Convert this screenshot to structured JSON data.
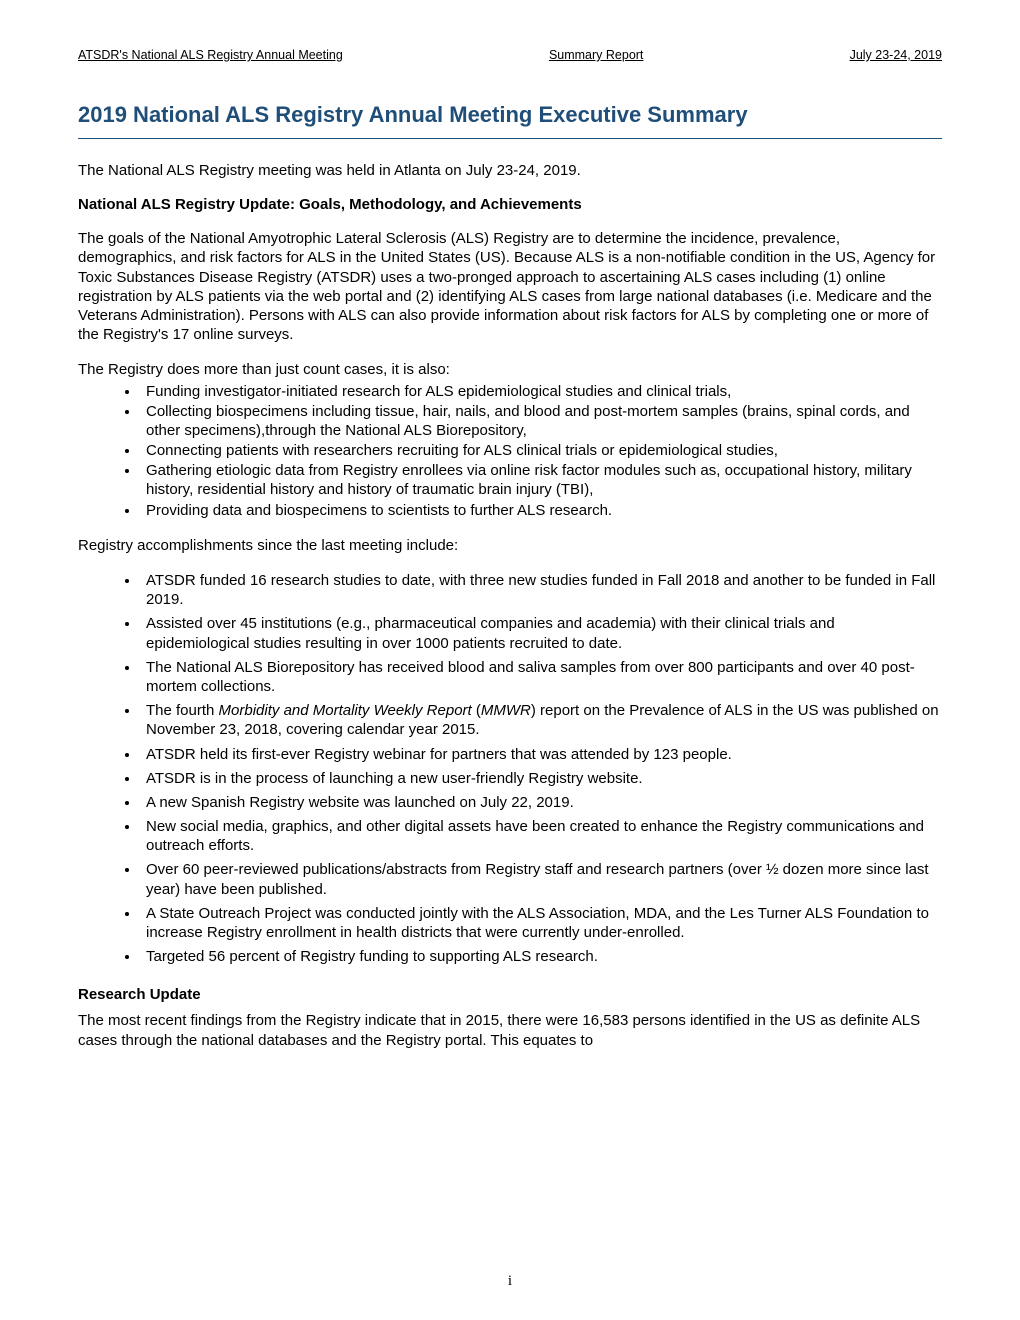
{
  "header": {
    "left": "ATSDR's National ALS Registry Annual Meeting",
    "center": "Summary Report",
    "right": "July 23-24, 2019"
  },
  "title": "2019 National ALS Registry Annual Meeting Executive Summary",
  "intro": "The National ALS Registry meeting was held in Atlanta on July 23-24, 2019.",
  "section1_heading": "National ALS Registry Update: Goals, Methodology, and Achievements",
  "section1_p1": "The goals of the National Amyotrophic Lateral Sclerosis (ALS) Registry are to determine the incidence, prevalence, demographics, and risk factors for ALS in the United States (US). Because ALS is a non-notifiable condition in the US, Agency for Toxic Substances Disease Registry (ATSDR) uses a two-pronged approach to ascertaining ALS cases including (1) online registration by ALS patients via the web portal and (2) identifying ALS cases from large national databases (i.e. Medicare and the Veterans Administration). Persons with ALS can also provide information about risk factors for ALS by completing one or more of the Registry's 17 online surveys.",
  "section1_p2": "The Registry does more than just count cases, it is also:",
  "bullets1": [
    "Funding investigator-initiated research for ALS epidemiological studies and clinical trials,",
    "Collecting biospecimens including tissue, hair, nails, and blood and post-mortem samples (brains, spinal cords, and other specimens),through the National ALS Biorepository,",
    "Connecting patients with researchers recruiting for ALS clinical trials or epidemiological studies,",
    "Gathering etiologic data from Registry enrollees via online risk factor modules such as, occupational history, military history, residential history and history of traumatic brain injury (TBI),",
    "Providing data and biospecimens to scientists to further ALS research."
  ],
  "section1_p3": "Registry accomplishments since the last meeting include:",
  "bullets2": [
    "ATSDR funded 16 research studies to date, with three new studies funded in Fall 2018 and another to be funded in Fall 2019.",
    "Assisted over 45 institutions (e.g., pharmaceutical companies and academia) with their clinical trials and epidemiological studies resulting in over 1000 patients recruited to date.",
    "The National ALS Biorepository has received blood and saliva samples from over 800 participants and over 40 post-mortem collections.",
    "The fourth <span class=\"italic\">Morbidity and Mortality Weekly Report</span> (<span class=\"italic\">MMWR</span>) report on the Prevalence of ALS in the US was published on November 23, 2018, covering calendar year 2015.",
    "ATSDR held its first-ever Registry webinar for partners that was attended by 123 people.",
    "ATSDR is in the process of launching a new user-friendly Registry website.",
    "A new Spanish Registry website was launched on July 22, 2019.",
    "New social media, graphics, and other digital assets have been created to enhance the Registry communications and outreach efforts.",
    "Over 60 peer-reviewed publications/abstracts from Registry staff and research partners (over ½ dozen more since last year) have been published.",
    "A State Outreach Project was conducted jointly with the ALS Association, MDA, and the Les Turner ALS Foundation to increase Registry enrollment in health districts that were currently under-enrolled.",
    "Targeted 56 percent of Registry funding to supporting ALS research."
  ],
  "section2_heading": "Research Update",
  "section2_p1": "The most recent findings from the Registry indicate that in 2015, there were 16,583 persons identified in the US as definite ALS cases through the national databases and the Registry portal. This equates to",
  "page_number": "i"
}
